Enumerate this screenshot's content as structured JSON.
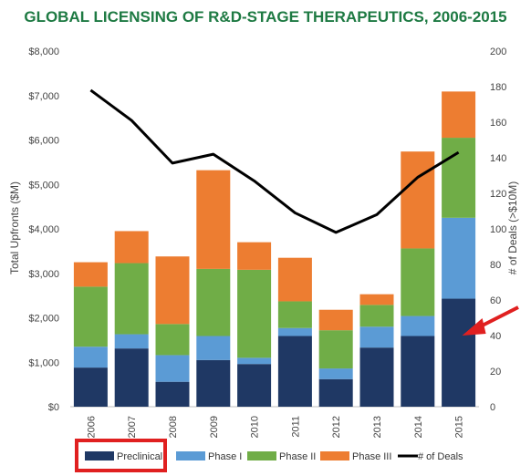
{
  "chart_data": {
    "type": "bar",
    "stacked": true,
    "title": "GLOBAL LICENSING OF R&D-STAGE THERAPEUTICS, 2006-2015",
    "categories": [
      "2006",
      "2007",
      "2008",
      "2009",
      "2010",
      "2011",
      "2012",
      "2013",
      "2014",
      "2015"
    ],
    "ylabel": "Total Upfronts ($M)",
    "y2label": "# of Deals (>$10M)",
    "ylim": [
      0,
      8000
    ],
    "y2lim": [
      0,
      200
    ],
    "y_ticks": [
      "$0",
      "$1,000",
      "$2,000",
      "$3,000",
      "$4,000",
      "$5,000",
      "$6,000",
      "$7,000",
      "$8,000"
    ],
    "y2_ticks": [
      "0",
      "20",
      "40",
      "60",
      "80",
      "100",
      "120",
      "140",
      "160",
      "180",
      "200"
    ],
    "grid": false,
    "legend_position": "bottom",
    "series": [
      {
        "name": "Preclinical",
        "color": "#1f3864",
        "values": [
          880,
          1310,
          560,
          1050,
          960,
          1590,
          620,
          1330,
          1590,
          2430
        ]
      },
      {
        "name": "Phase I",
        "color": "#5b9bd5",
        "values": [
          470,
          320,
          600,
          540,
          140,
          180,
          240,
          470,
          450,
          1820
        ]
      },
      {
        "name": "Phase II",
        "color": "#70ad47",
        "values": [
          1350,
          1600,
          700,
          1510,
          1980,
          600,
          860,
          490,
          1520,
          1800
        ]
      },
      {
        "name": "Phase III",
        "color": "#ed7d31",
        "values": [
          550,
          720,
          1520,
          2220,
          620,
          980,
          460,
          240,
          2180,
          1040
        ]
      }
    ],
    "line_series": {
      "name": "# of Deals",
      "color": "#000000",
      "axis": "right",
      "values": [
        178,
        161,
        137,
        142,
        127,
        109,
        98,
        108,
        129,
        143
      ]
    },
    "annotations": [
      {
        "type": "arrow",
        "color": "#e02020",
        "points_to": "2015 Preclinical"
      },
      {
        "type": "box",
        "color": "#e02020",
        "surrounds": "legend Preclinical"
      }
    ]
  }
}
